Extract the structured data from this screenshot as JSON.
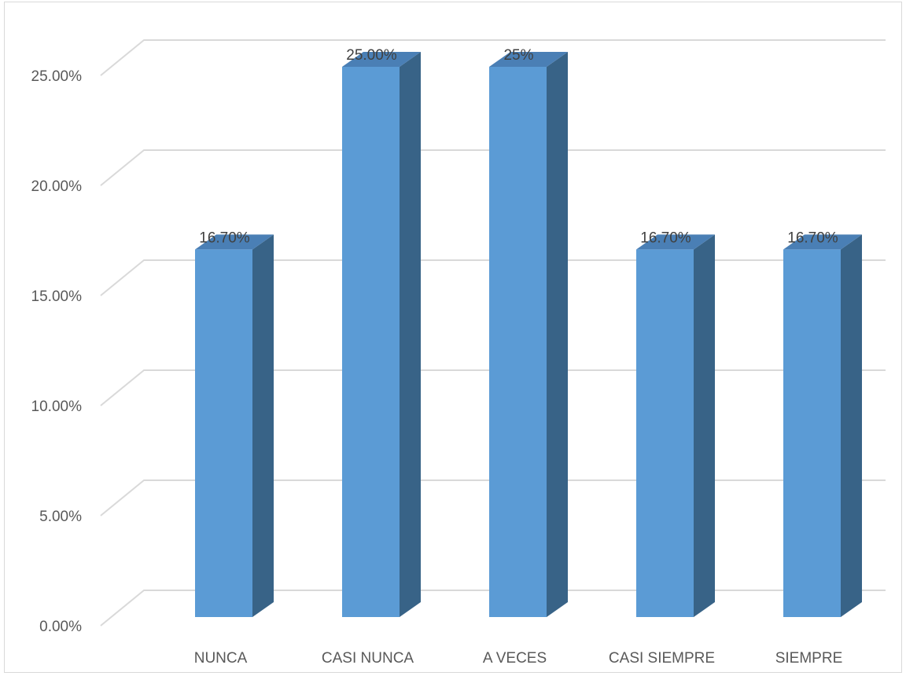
{
  "chart_data": {
    "type": "bar",
    "style": "3d-column",
    "categories": [
      "NUNCA",
      "CASI NUNCA",
      "A VECES",
      "CASI SIEMPRE",
      "SIEMPRE"
    ],
    "values": [
      16.7,
      25.0,
      25.0,
      16.7,
      16.7
    ],
    "data_labels": [
      "16.70%",
      "25.00%",
      "25%",
      "16.70%",
      "16.70%"
    ],
    "ylim": [
      0,
      25
    ],
    "yticks": [
      0,
      5,
      10,
      15,
      20,
      25
    ],
    "ytick_labels": [
      "0.00%",
      "5.00%",
      "10.00%",
      "15.00%",
      "20.00%",
      "25.00%"
    ],
    "grid": true,
    "legend": "none",
    "colors": {
      "bar_front": "#5b9bd5",
      "bar_side": "#386387",
      "bar_top": "#4a7fb5",
      "grid": "#d9d9d9"
    }
  }
}
